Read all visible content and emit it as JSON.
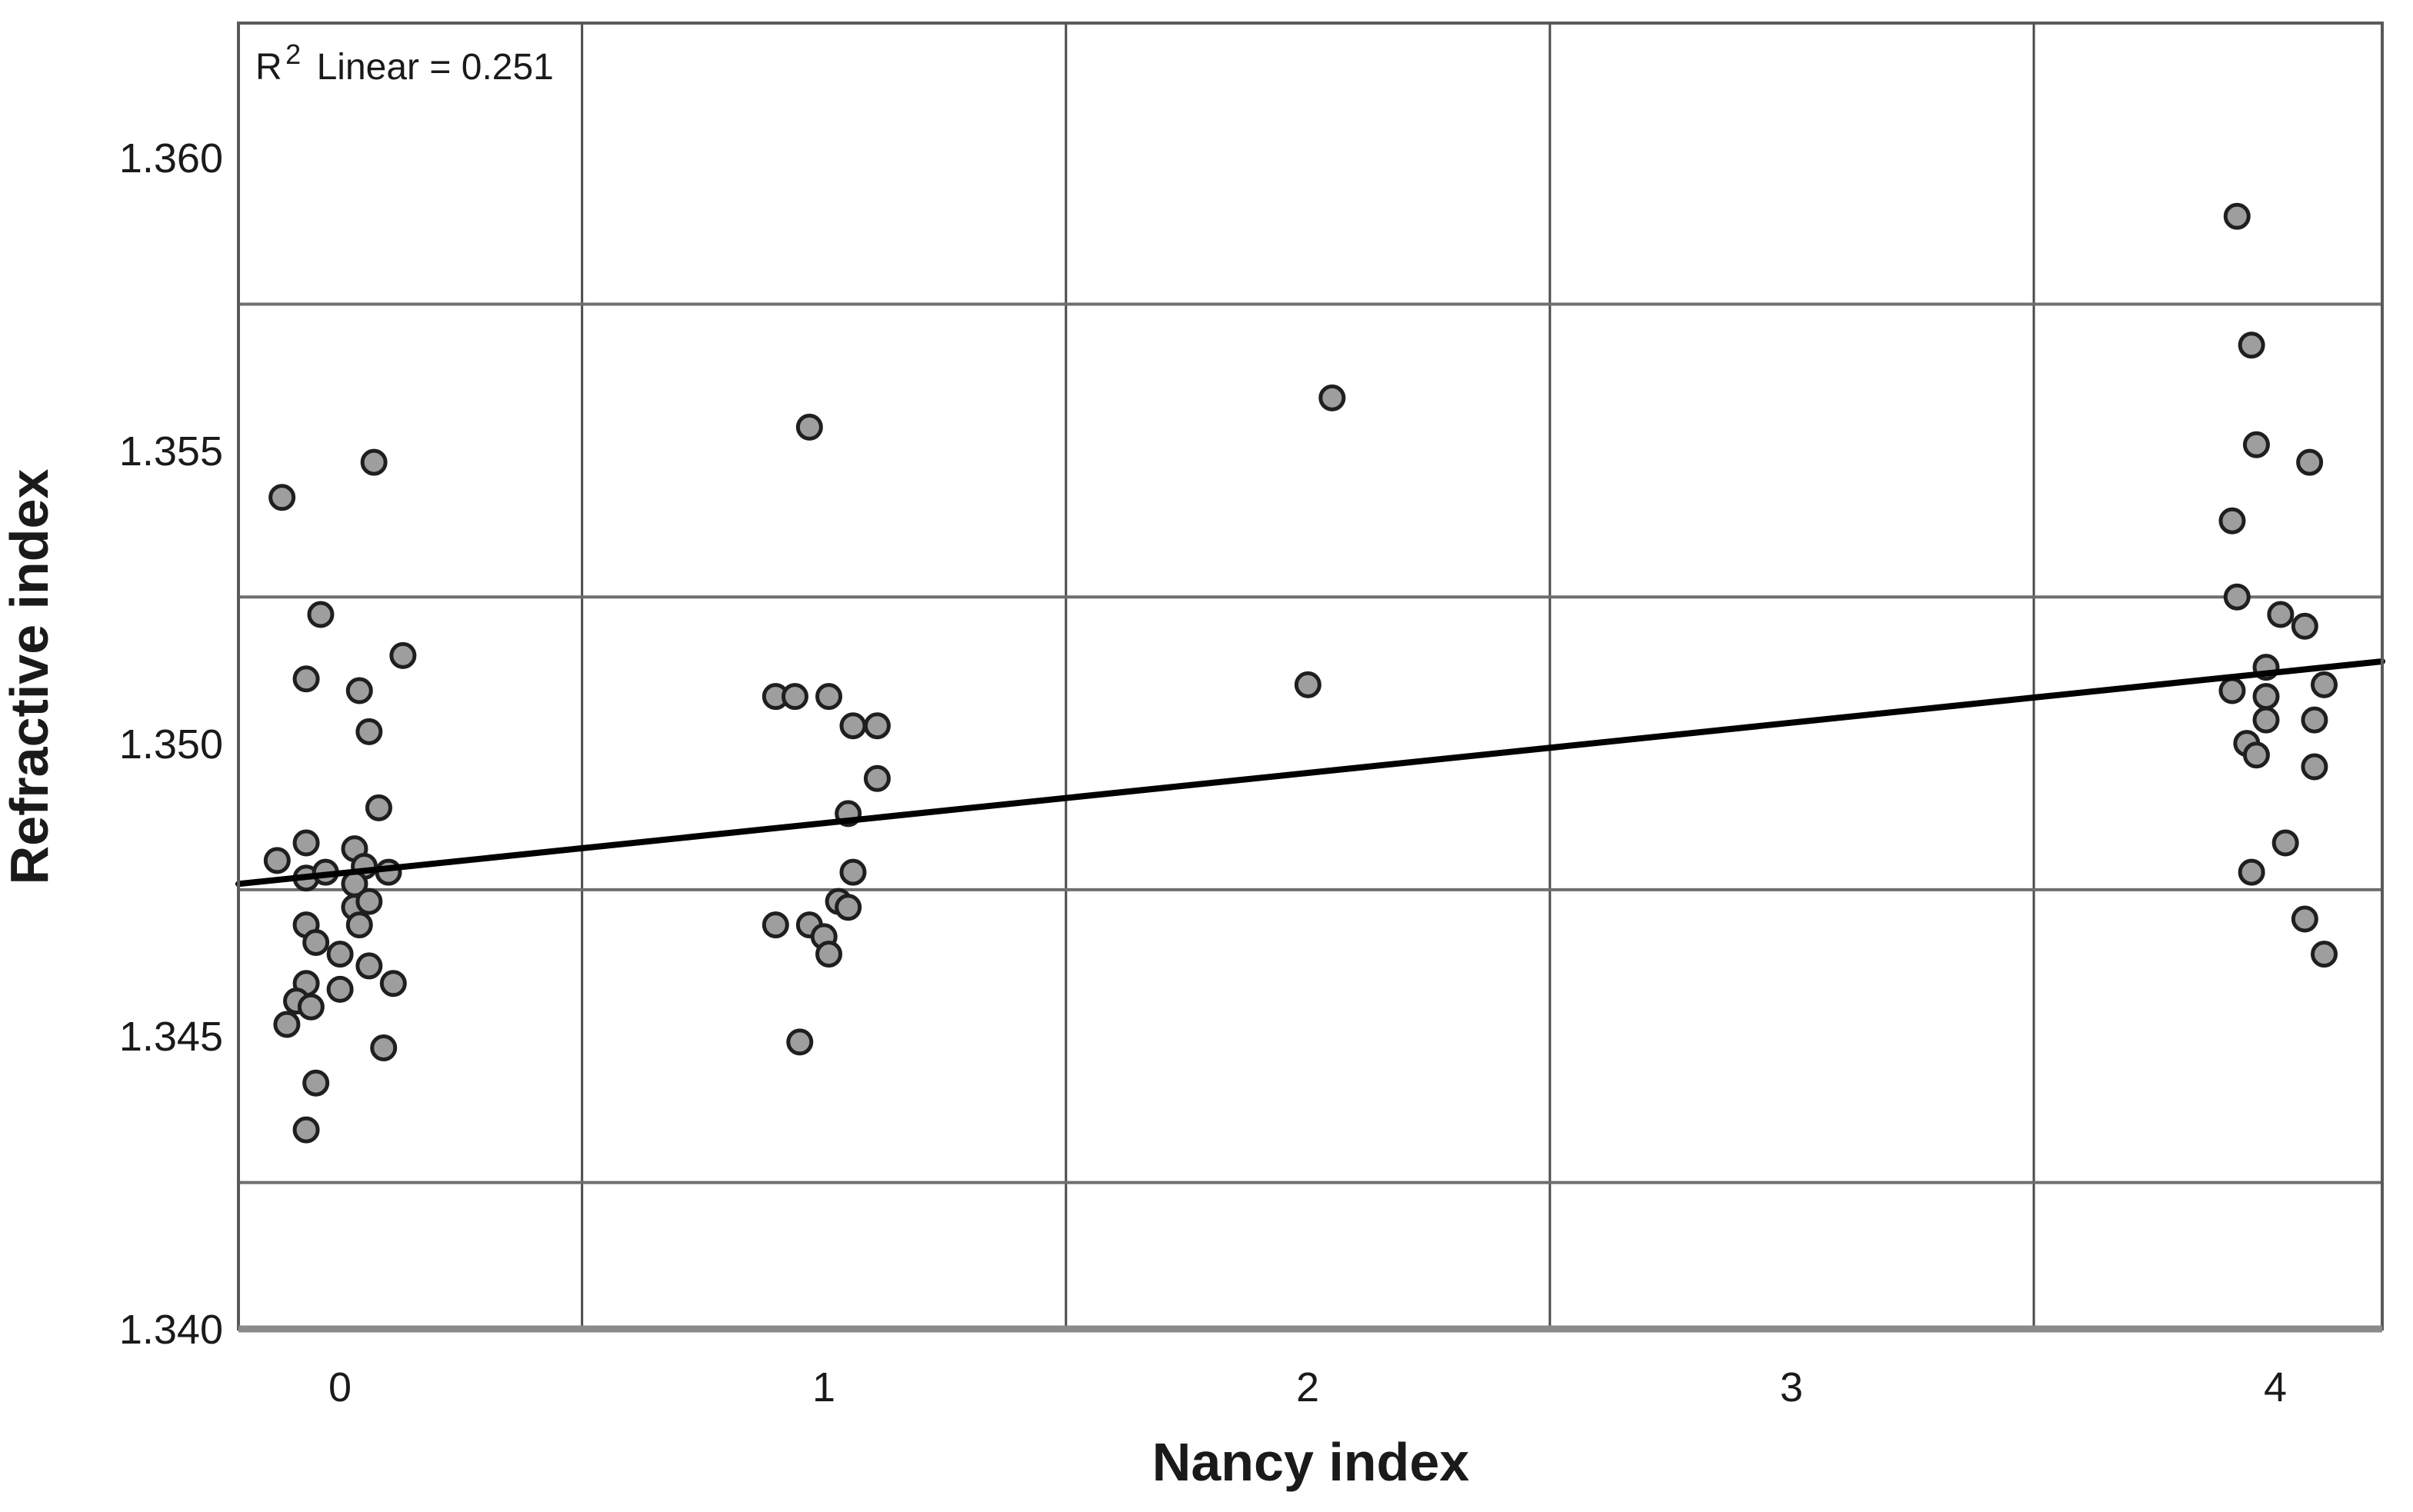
{
  "chart_data": {
    "type": "scatter",
    "title": "",
    "xlabel": "Nancy index",
    "ylabel": "Refractive index",
    "annotation": {
      "r": "R",
      "sup": "2",
      "rest": "Linear = 0.251"
    },
    "r_squared_linear": 0.251,
    "xlim": [
      -0.21,
      4.22
    ],
    "ylim": [
      1.34,
      1.3623
    ],
    "xtick_values": [
      0,
      1,
      2,
      3,
      4
    ],
    "xtick_labels": [
      "0",
      "1",
      "2",
      "3",
      "4"
    ],
    "ytick_values": [
      1.34,
      1.345,
      1.35,
      1.355,
      1.36
    ],
    "ytick_labels": [
      "1.340",
      "1.345",
      "1.350",
      "1.355",
      "1.360"
    ],
    "gridlines": {
      "x": [
        0.5,
        1.5,
        2.5,
        3.5
      ],
      "y": [
        1.3425,
        1.3475,
        1.3525,
        1.3575
      ]
    },
    "grid_on": true,
    "legend": "none",
    "marker": {
      "fill": "#9e9e9e",
      "stroke": "#1f1f1f",
      "stroke_width": 5,
      "radius_px": 15
    },
    "colors": {
      "grid_vertical": "#4a4a4a",
      "grid_horizontal": "#6e6e6e",
      "frame": "#595959",
      "axis_bottom": "#8a8a8a",
      "trend": "#000000",
      "text": "#1a1a1a",
      "background": "#ffffff"
    },
    "trend_line": {
      "x1": -0.21,
      "y1": 1.3476,
      "x2": 4.22,
      "y2": 1.3514
    },
    "points": [
      [
        -0.12,
        1.3542
      ],
      [
        0.07,
        1.3548
      ],
      [
        -0.04,
        1.3522
      ],
      [
        0.13,
        1.3515
      ],
      [
        -0.07,
        1.3511
      ],
      [
        0.04,
        1.3509
      ],
      [
        0.06,
        1.3502
      ],
      [
        0.08,
        1.3489
      ],
      [
        -0.13,
        1.348
      ],
      [
        -0.07,
        1.3483
      ],
      [
        0.03,
        1.3482
      ],
      [
        -0.07,
        1.3477
      ],
      [
        -0.03,
        1.3478
      ],
      [
        0.05,
        1.3479
      ],
      [
        0.1,
        1.3478
      ],
      [
        0.03,
        1.3476
      ],
      [
        0.03,
        1.3472
      ],
      [
        0.06,
        1.3473
      ],
      [
        0.04,
        1.3469
      ],
      [
        -0.07,
        1.3469
      ],
      [
        -0.05,
        1.3466
      ],
      [
        0.0,
        1.3464
      ],
      [
        0.06,
        1.3462
      ],
      [
        0.11,
        1.3459
      ],
      [
        -0.07,
        1.3459
      ],
      [
        0.0,
        1.3458
      ],
      [
        -0.09,
        1.3456
      ],
      [
        -0.06,
        1.3455
      ],
      [
        -0.11,
        1.3452
      ],
      [
        0.09,
        1.3448
      ],
      [
        -0.05,
        1.3442
      ],
      [
        -0.07,
        1.3434
      ],
      [
        0.97,
        1.3554
      ],
      [
        0.9,
        1.3508
      ],
      [
        0.94,
        1.3508
      ],
      [
        1.01,
        1.3508
      ],
      [
        1.06,
        1.3503
      ],
      [
        1.11,
        1.3503
      ],
      [
        1.11,
        1.3494
      ],
      [
        1.05,
        1.3488
      ],
      [
        1.06,
        1.3478
      ],
      [
        1.03,
        1.3473
      ],
      [
        1.05,
        1.3472
      ],
      [
        0.9,
        1.3469
      ],
      [
        0.97,
        1.3469
      ],
      [
        1.0,
        1.3467
      ],
      [
        1.01,
        1.3464
      ],
      [
        0.95,
        1.3449
      ],
      [
        2.05,
        1.3559
      ],
      [
        2.0,
        1.351
      ],
      [
        3.92,
        1.359
      ],
      [
        3.95,
        1.3568
      ],
      [
        3.96,
        1.3551
      ],
      [
        4.07,
        1.3548
      ],
      [
        3.91,
        1.3538
      ],
      [
        3.92,
        1.3525
      ],
      [
        4.01,
        1.3522
      ],
      [
        4.06,
        1.352
      ],
      [
        3.98,
        1.3513
      ],
      [
        4.1,
        1.351
      ],
      [
        3.91,
        1.3509
      ],
      [
        3.98,
        1.3508
      ],
      [
        3.98,
        1.3504
      ],
      [
        4.08,
        1.3504
      ],
      [
        3.94,
        1.35
      ],
      [
        3.96,
        1.3498
      ],
      [
        4.08,
        1.3496
      ],
      [
        4.02,
        1.3483
      ],
      [
        3.95,
        1.3478
      ],
      [
        4.06,
        1.347
      ],
      [
        4.1,
        1.3464
      ]
    ]
  }
}
